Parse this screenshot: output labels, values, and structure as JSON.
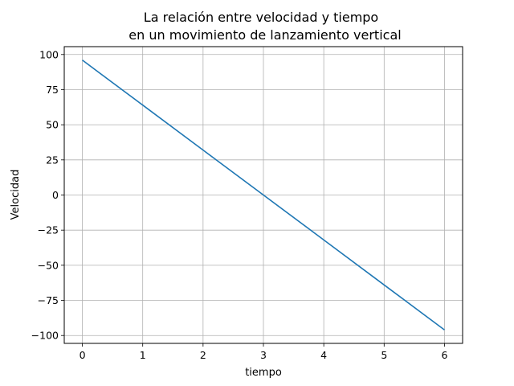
{
  "chart_data": {
    "type": "line",
    "title_lines": [
      "La relación entre velocidad y tiempo",
      "en un movimiento de lanzamiento vertical"
    ],
    "xlabel": "tiempo",
    "ylabel": "Velocidad",
    "xlim": [
      -0.3,
      6.3
    ],
    "ylim": [
      -105.6,
      105.6
    ],
    "x_ticks": [
      0,
      1,
      2,
      3,
      4,
      5,
      6
    ],
    "x_tick_labels": [
      "0",
      "1",
      "2",
      "3",
      "4",
      "5",
      "6"
    ],
    "y_ticks": [
      100,
      75,
      50,
      25,
      0,
      -25,
      -50,
      -75,
      -100
    ],
    "y_tick_labels": [
      "100",
      "75",
      "50",
      "25",
      "0",
      "−25",
      "−50",
      "−75",
      "−100"
    ],
    "grid": true,
    "series": [
      {
        "x": [
          0,
          1,
          2,
          3,
          4,
          5,
          6
        ],
        "values": [
          96,
          64,
          32,
          0,
          -32,
          -64,
          -96
        ],
        "color": "#1f77b4"
      }
    ]
  }
}
